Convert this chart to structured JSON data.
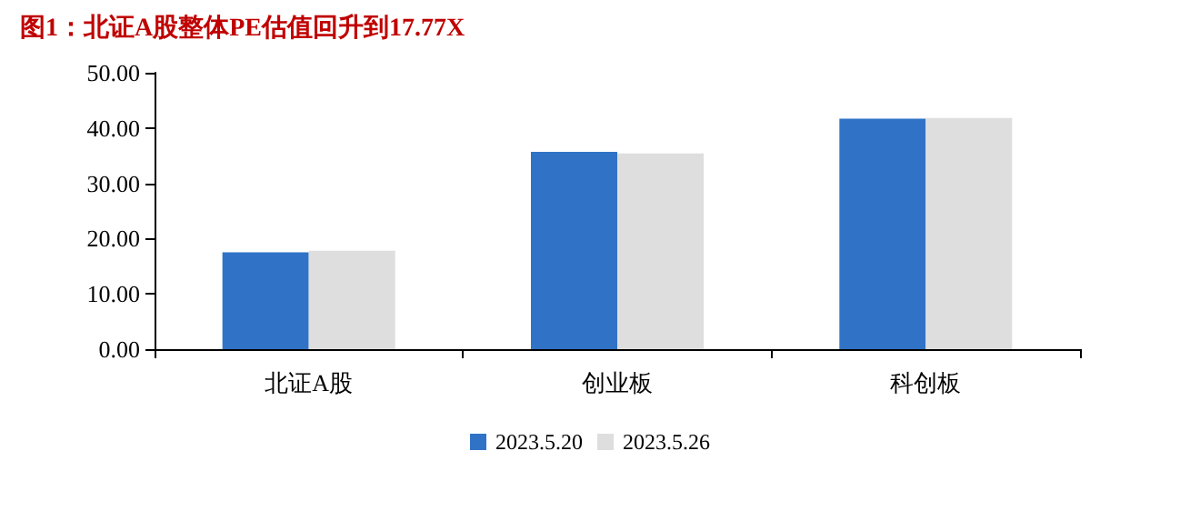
{
  "chart_data": {
    "type": "bar",
    "title": "图1：北证A股整体PE估值回升到17.77X",
    "categories": [
      "北证A股",
      "创业板",
      "科创板"
    ],
    "series": [
      {
        "name": "2023.5.20",
        "color": "#3073c6",
        "values": [
          17.5,
          35.7,
          41.7
        ]
      },
      {
        "name": "2023.5.26",
        "color": "#dedede",
        "values": [
          17.8,
          35.4,
          41.8
        ]
      }
    ],
    "ylim": [
      0,
      50
    ],
    "yticks": [
      {
        "value": 0,
        "label": "0.00"
      },
      {
        "value": 10,
        "label": "10.00"
      },
      {
        "value": 20,
        "label": "20.00"
      },
      {
        "value": 30,
        "label": "30.00"
      },
      {
        "value": 40,
        "label": "40.00"
      },
      {
        "value": 50,
        "label": "50.00"
      }
    ],
    "grid": false,
    "legend": "bottom"
  }
}
